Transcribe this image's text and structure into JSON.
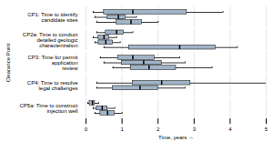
{
  "chart_data": {
    "type": "boxplot",
    "orientation": "horizontal",
    "xlabel": "Time, years",
    "ylabel": "Clearance Point",
    "xlim": [
      0,
      5
    ],
    "xticks": [
      0,
      1,
      2,
      3,
      4,
      5
    ],
    "grid": true,
    "color": "#a0b4c8",
    "categories": [
      "CP1: Time to identify\ncandidate sites",
      "CP2a: Time to conduct\ndetailed geologic\ncharacterization",
      "CP3: Time for permit\napplication\nreview",
      "CP4: Time to resolve\nlegal challenges",
      "CP5a: Time to construct\ninjection well"
    ],
    "boxes": [
      [
        {
          "whislo": 0.3,
          "q1": 0.85,
          "med": 1.25,
          "q3": 1.55,
          "whishi": 2.0
        },
        {
          "whislo": 0.25,
          "q1": 0.6,
          "med": 0.9,
          "q3": 1.1,
          "whishi": 1.4
        },
        {
          "whislo": 0.2,
          "q1": 0.5,
          "med": 1.3,
          "q3": 2.8,
          "whishi": 3.8
        }
      ],
      [
        {
          "whislo": 0.5,
          "q1": 1.2,
          "med": 2.6,
          "q3": 3.6,
          "whishi": 4.2
        },
        {
          "whislo": 0.25,
          "q1": 0.35,
          "med": 0.55,
          "q3": 0.75,
          "whishi": 0.95
        },
        {
          "whislo": 0.2,
          "q1": 0.35,
          "med": 0.5,
          "q3": 0.65,
          "whishi": 0.85
        },
        {
          "whislo": 0.3,
          "q1": 0.55,
          "med": 0.85,
          "q3": 1.05,
          "whishi": 1.3
        }
      ],
      [
        {
          "whislo": 0.75,
          "q1": 1.25,
          "med": 1.75,
          "q3": 2.5,
          "whishi": 3.5
        },
        {
          "whislo": 0.5,
          "q1": 1.0,
          "med": 1.6,
          "q3": 2.1,
          "whishi": 2.75
        },
        {
          "whislo": 0.4,
          "q1": 0.9,
          "med": 1.3,
          "q3": 1.9,
          "whishi": 2.6
        }
      ],
      [
        {
          "whislo": 0.3,
          "q1": 0.75,
          "med": 1.5,
          "q3": 2.0,
          "whishi": 2.75
        },
        {
          "whislo": 0.3,
          "q1": 1.3,
          "med": 2.1,
          "q3": 2.9,
          "whishi": 5.0
        }
      ],
      [
        {
          "whislo": 0.25,
          "q1": 0.4,
          "med": 0.6,
          "q3": 0.8,
          "whishi": 1.0
        },
        {
          "whislo": 0.2,
          "q1": 0.3,
          "med": 0.45,
          "q3": 0.6,
          "whishi": 0.8
        },
        {
          "whislo": 0.05,
          "q1": 0.1,
          "med": 0.18,
          "q3": 0.25,
          "whishi": 0.35
        }
      ]
    ]
  }
}
